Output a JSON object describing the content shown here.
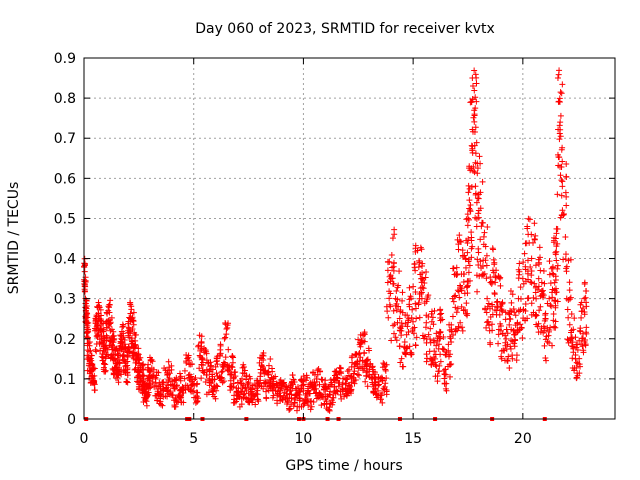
{
  "chart_data": {
    "type": "scatter",
    "title": "Day 060 of 2023, SRMTID for receiver kvtx",
    "xlabel": "GPS time / hours",
    "ylabel": "SRMTID / TECUs",
    "xlim": [
      0,
      24.2
    ],
    "ylim": [
      0,
      0.9
    ],
    "grid": true,
    "color": "#ff0000",
    "x_ticks": [
      {
        "value": 0,
        "label": "0"
      },
      {
        "value": 5,
        "label": "5"
      },
      {
        "value": 10,
        "label": "10"
      },
      {
        "value": 15,
        "label": "15"
      },
      {
        "value": 20,
        "label": "20"
      }
    ],
    "y_ticks": [
      {
        "value": 0,
        "label": "0"
      },
      {
        "value": 0.1,
        "label": "0.1"
      },
      {
        "value": 0.2,
        "label": "0.2"
      },
      {
        "value": 0.3,
        "label": "0.3"
      },
      {
        "value": 0.4,
        "label": "0.4"
      },
      {
        "value": 0.5,
        "label": "0.5"
      },
      {
        "value": 0.6,
        "label": "0.6"
      },
      {
        "value": 0.7,
        "label": "0.7"
      },
      {
        "value": 0.8,
        "label": "0.8"
      },
      {
        "value": 0.9,
        "label": "0.9"
      }
    ],
    "series": [
      {
        "name": "SRMTID",
        "marker": "plus",
        "x": [
          0.0,
          0.05,
          0.1,
          0.15,
          0.2,
          0.3,
          0.4,
          0.5,
          0.6,
          0.7,
          0.8,
          0.9,
          1.0,
          1.1,
          1.2,
          1.3,
          1.4,
          1.5,
          1.6,
          1.7,
          1.8,
          1.9,
          2.0,
          2.1,
          2.2,
          2.3,
          2.4,
          2.5,
          2.6,
          2.7,
          2.8,
          2.9,
          3.0,
          3.2,
          3.4,
          3.6,
          3.8,
          4.0,
          4.2,
          4.4,
          4.6,
          4.8,
          5.0,
          5.2,
          5.4,
          5.6,
          5.8,
          6.0,
          6.2,
          6.4,
          6.6,
          6.8,
          7.0,
          7.2,
          7.4,
          7.6,
          7.8,
          8.0,
          8.2,
          8.4,
          8.6,
          8.8,
          9.0,
          9.2,
          9.4,
          9.6,
          9.8,
          10.0,
          10.2,
          10.4,
          10.6,
          10.8,
          11.0,
          11.2,
          11.4,
          11.6,
          11.8,
          12.0,
          12.2,
          12.4,
          12.6,
          12.8,
          13.0,
          13.2,
          13.4,
          13.6,
          13.8,
          14.0,
          14.2,
          14.4,
          14.6,
          14.8,
          15.0,
          15.2,
          15.4,
          15.6,
          15.8,
          16.0,
          16.2,
          16.4,
          16.6,
          16.8,
          17.0,
          17.2,
          17.4,
          17.5,
          17.6,
          17.7,
          17.8,
          17.9,
          18.0,
          18.2,
          18.4,
          18.6,
          18.8,
          19.0,
          19.2,
          19.4,
          19.6,
          19.8,
          20.0,
          20.2,
          20.4,
          20.6,
          20.8,
          21.0,
          21.2,
          21.4,
          21.5,
          21.6,
          21.7,
          21.8,
          22.0,
          22.2,
          22.4,
          22.6,
          22.8
        ],
        "y": [
          0.38,
          0.33,
          0.26,
          0.2,
          0.15,
          0.12,
          0.09,
          0.22,
          0.28,
          0.25,
          0.2,
          0.17,
          0.24,
          0.27,
          0.22,
          0.18,
          0.15,
          0.13,
          0.17,
          0.2,
          0.16,
          0.14,
          0.22,
          0.29,
          0.25,
          0.18,
          0.14,
          0.12,
          0.1,
          0.07,
          0.05,
          0.1,
          0.12,
          0.08,
          0.06,
          0.09,
          0.11,
          0.06,
          0.08,
          0.07,
          0.12,
          0.1,
          0.07,
          0.18,
          0.15,
          0.11,
          0.09,
          0.13,
          0.16,
          0.2,
          0.12,
          0.08,
          0.06,
          0.1,
          0.07,
          0.05,
          0.06,
          0.14,
          0.09,
          0.11,
          0.07,
          0.06,
          0.08,
          0.05,
          0.07,
          0.04,
          0.06,
          0.07,
          0.05,
          0.08,
          0.1,
          0.06,
          0.05,
          0.06,
          0.08,
          0.09,
          0.07,
          0.1,
          0.13,
          0.16,
          0.18,
          0.14,
          0.11,
          0.08,
          0.07,
          0.1,
          0.28,
          0.35,
          0.3,
          0.22,
          0.18,
          0.25,
          0.33,
          0.42,
          0.3,
          0.24,
          0.19,
          0.15,
          0.2,
          0.12,
          0.17,
          0.3,
          0.36,
          0.32,
          0.4,
          0.5,
          0.62,
          0.85,
          0.76,
          0.48,
          0.56,
          0.36,
          0.28,
          0.34,
          0.26,
          0.22,
          0.19,
          0.25,
          0.21,
          0.3,
          0.35,
          0.48,
          0.4,
          0.33,
          0.28,
          0.22,
          0.3,
          0.36,
          0.45,
          0.85,
          0.74,
          0.58,
          0.3,
          0.2,
          0.15,
          0.22,
          0.3
        ],
        "band_low": [
          0.3,
          0.24,
          0.18,
          0.12,
          0.1,
          0.08,
          0.07,
          0.16,
          0.2,
          0.17,
          0.14,
          0.11,
          0.15,
          0.18,
          0.15,
          0.11,
          0.1,
          0.09,
          0.11,
          0.14,
          0.11,
          0.09,
          0.15,
          0.18,
          0.15,
          0.12,
          0.09,
          0.07,
          0.06,
          0.04,
          0.03,
          0.06,
          0.07,
          0.04,
          0.03,
          0.05,
          0.06,
          0.03,
          0.04,
          0.04,
          0.07,
          0.06,
          0.04,
          0.1,
          0.09,
          0.06,
          0.05,
          0.07,
          0.09,
          0.12,
          0.07,
          0.04,
          0.03,
          0.05,
          0.04,
          0.03,
          0.03,
          0.07,
          0.05,
          0.06,
          0.04,
          0.03,
          0.04,
          0.02,
          0.03,
          0.02,
          0.03,
          0.03,
          0.02,
          0.04,
          0.05,
          0.03,
          0.02,
          0.03,
          0.04,
          0.05,
          0.04,
          0.06,
          0.08,
          0.1,
          0.11,
          0.08,
          0.06,
          0.05,
          0.04,
          0.06,
          0.16,
          0.2,
          0.18,
          0.13,
          0.1,
          0.15,
          0.18,
          0.25,
          0.18,
          0.14,
          0.11,
          0.09,
          0.12,
          0.07,
          0.1,
          0.18,
          0.22,
          0.2,
          0.25,
          0.3,
          0.38,
          0.6,
          0.5,
          0.3,
          0.34,
          0.22,
          0.18,
          0.2,
          0.16,
          0.14,
          0.12,
          0.15,
          0.13,
          0.18,
          0.22,
          0.3,
          0.25,
          0.2,
          0.17,
          0.14,
          0.18,
          0.22,
          0.28,
          0.6,
          0.45,
          0.35,
          0.18,
          0.12,
          0.1,
          0.13,
          0.18
        ],
        "band_high": [
          0.4,
          0.36,
          0.3,
          0.24,
          0.2,
          0.16,
          0.13,
          0.26,
          0.3,
          0.28,
          0.24,
          0.21,
          0.27,
          0.3,
          0.26,
          0.22,
          0.19,
          0.17,
          0.21,
          0.24,
          0.2,
          0.18,
          0.26,
          0.3,
          0.28,
          0.22,
          0.18,
          0.16,
          0.14,
          0.11,
          0.09,
          0.14,
          0.16,
          0.12,
          0.1,
          0.13,
          0.15,
          0.1,
          0.12,
          0.11,
          0.16,
          0.14,
          0.11,
          0.22,
          0.19,
          0.15,
          0.13,
          0.17,
          0.2,
          0.24,
          0.16,
          0.12,
          0.1,
          0.14,
          0.11,
          0.09,
          0.1,
          0.18,
          0.13,
          0.15,
          0.11,
          0.1,
          0.12,
          0.09,
          0.11,
          0.08,
          0.1,
          0.11,
          0.09,
          0.12,
          0.14,
          0.1,
          0.09,
          0.1,
          0.12,
          0.13,
          0.11,
          0.14,
          0.17,
          0.2,
          0.22,
          0.18,
          0.15,
          0.12,
          0.11,
          0.14,
          0.4,
          0.48,
          0.42,
          0.32,
          0.26,
          0.35,
          0.44,
          0.44,
          0.4,
          0.32,
          0.27,
          0.22,
          0.28,
          0.18,
          0.24,
          0.4,
          0.46,
          0.44,
          0.52,
          0.64,
          0.8,
          0.87,
          0.86,
          0.64,
          0.68,
          0.48,
          0.38,
          0.46,
          0.36,
          0.3,
          0.27,
          0.34,
          0.29,
          0.4,
          0.46,
          0.5,
          0.5,
          0.44,
          0.38,
          0.3,
          0.4,
          0.46,
          0.56,
          0.87,
          0.86,
          0.7,
          0.4,
          0.28,
          0.22,
          0.3,
          0.36
        ]
      }
    ],
    "baseline_markers_x": [
      0.1,
      4.7,
      4.8,
      5.4,
      7.4,
      9.8,
      10.0,
      11.1,
      11.6,
      14.4,
      16.0,
      18.6,
      21.0
    ]
  }
}
